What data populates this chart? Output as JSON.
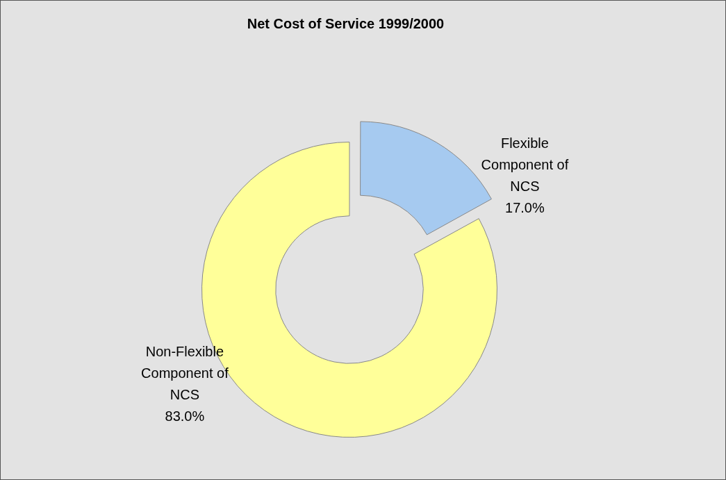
{
  "chart_data": {
    "type": "donut",
    "title": "Net Cost of Service 1999/2000",
    "categories": [
      "Flexible Component of NCS",
      "Non-Flexible Component of NCS"
    ],
    "values": [
      17.0,
      83.0
    ],
    "colors": [
      "#a6caf0",
      "#ffff99"
    ],
    "value_labels": [
      "17.0%",
      "83.0%"
    ]
  }
}
